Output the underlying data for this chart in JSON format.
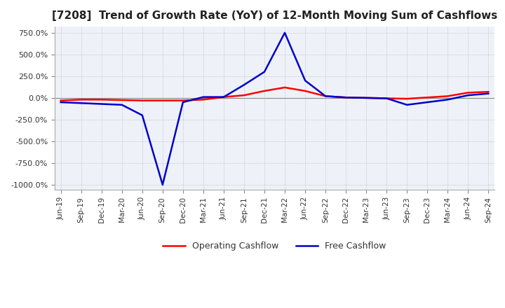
{
  "title": "[7208]  Trend of Growth Rate (YoY) of 12-Month Moving Sum of Cashflows",
  "title_fontsize": 11,
  "background_color": "#ffffff",
  "plot_bg_color": "#eef2f8",
  "grid_color": "#aaaaaa",
  "x_labels": [
    "Jun-19",
    "Sep-19",
    "Dec-19",
    "Mar-20",
    "Jun-20",
    "Sep-20",
    "Dec-20",
    "Mar-21",
    "Jun-21",
    "Sep-21",
    "Dec-21",
    "Mar-22",
    "Jun-22",
    "Sep-22",
    "Dec-22",
    "Mar-23",
    "Jun-23",
    "Sep-23",
    "Dec-23",
    "Mar-24",
    "Jun-24",
    "Sep-24"
  ],
  "operating_cashflow": [
    -30,
    -20,
    -20,
    -25,
    -30,
    -30,
    -30,
    -20,
    10,
    30,
    80,
    120,
    80,
    20,
    5,
    0,
    -5,
    -10,
    5,
    20,
    60,
    70
  ],
  "free_cashflow": [
    -50,
    -60,
    -70,
    -80,
    -200,
    -1000,
    -50,
    10,
    10,
    150,
    300,
    750,
    200,
    20,
    5,
    0,
    -5,
    -80,
    -50,
    -20,
    30,
    50
  ],
  "op_color": "#ff0000",
  "free_color": "#0000cc",
  "ylim": [
    -1060,
    820
  ],
  "yticks": [
    750,
    500,
    250,
    0,
    -250,
    -500,
    -750,
    -1000
  ],
  "line_width": 1.8
}
